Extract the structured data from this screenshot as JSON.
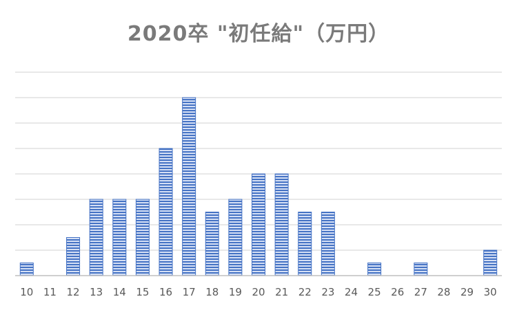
{
  "chart_data": {
    "type": "bar",
    "title": "2020卒 \"初任給\"（万円）",
    "xlabel": "",
    "ylabel": "",
    "categories": [
      "10",
      "11",
      "12",
      "13",
      "14",
      "15",
      "16",
      "17",
      "18",
      "19",
      "20",
      "21",
      "22",
      "23",
      "24",
      "25",
      "26",
      "27",
      "28",
      "29",
      "30"
    ],
    "values": [
      0.5,
      0,
      1.5,
      3,
      3,
      3,
      5,
      7,
      2.5,
      3,
      4,
      4,
      2.5,
      2.5,
      0,
      0.5,
      0,
      0.5,
      0,
      0,
      1
    ],
    "ylim": [
      0,
      8
    ],
    "yticks_shown": false,
    "grid": true,
    "legend": "none",
    "colors": {
      "bar": "#4472c4",
      "bar_stripe": "#d6e0f5",
      "grid": "#d9d9d9",
      "axis": "#bfbfbf",
      "title": "#7a7a7a",
      "tick": "#595959"
    }
  }
}
